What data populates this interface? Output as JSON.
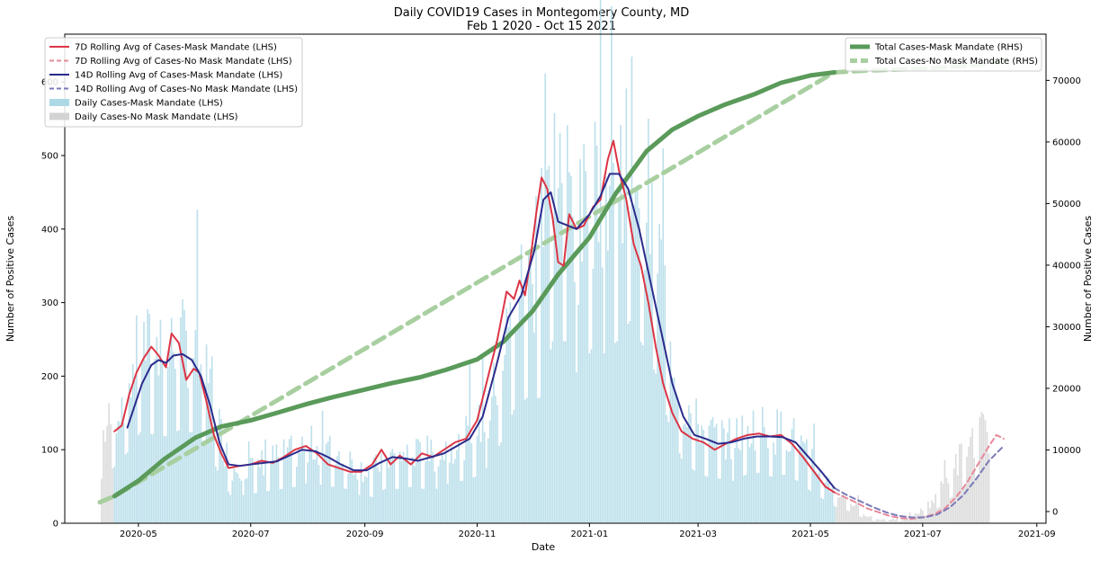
{
  "chart_data": {
    "type": "bar+line",
    "title": "Daily COVID19 Cases in Montegomery County, MD",
    "subtitle": "Feb 1 2020 - Oct 15 2021",
    "xlabel": "Date",
    "ylabel_left": "Number of Positive Cases",
    "ylabel_right": "Number of Positive Cases",
    "x_range": [
      "2020-03-22",
      "2021-09-06"
    ],
    "ylim_left": [
      0,
      665
    ],
    "ylim_right": [
      -1900,
      77500
    ],
    "x_ticks": [
      "2020-05",
      "2020-07",
      "2020-09",
      "2020-11",
      "2021-01",
      "2021-03",
      "2021-05",
      "2021-07",
      "2021-09"
    ],
    "y_ticks_left": [
      0,
      100,
      200,
      300,
      400,
      500,
      600
    ],
    "y_ticks_right": [
      0,
      10000,
      20000,
      30000,
      40000,
      50000,
      60000,
      70000
    ],
    "legend_left": [
      {
        "label": "7D Rolling Avg of Cases-Mask Mandate (LHS)",
        "kind": "line",
        "color": "#dc3545",
        "dash": false
      },
      {
        "label": "7D Rolling Avg of Cases-No Mask Mandate (LHS)",
        "kind": "line",
        "color": "#e8899a",
        "dash": true
      },
      {
        "label": "14D Rolling Avg of Cases-Mask Mandate (LHS)",
        "kind": "line",
        "color": "#2b2b8c",
        "dash": false
      },
      {
        "label": "14D Rolling Avg of Cases-No Mask Mandate (LHS)",
        "kind": "line",
        "color": "#7a7ab8",
        "dash": true
      },
      {
        "label": "Daily Cases-Mask Mandate (LHS)",
        "kind": "bar",
        "color": "#add8e6"
      },
      {
        "label": "Daily Cases-No Mask Mandate (LHS)",
        "kind": "bar",
        "color": "#d3d3d3"
      }
    ],
    "legend_right": [
      {
        "label": "Total Cases-Mask Mandate (RHS)",
        "kind": "line",
        "color": "#5a9a5a",
        "dash": false
      },
      {
        "label": "Total Cases-No Mask Mandate (RHS)",
        "kind": "line",
        "color": "#a8cfa0",
        "dash": true
      }
    ],
    "mask_mandate_period": [
      "2020-04-18",
      "2021-05-14"
    ],
    "daily_cases_weekly_approx": {
      "start": "2020-04-11",
      "values": [
        110,
        140,
        175,
        225,
        220,
        215,
        230,
        225,
        200,
        130,
        70,
        70,
        75,
        80,
        85,
        90,
        100,
        95,
        90,
        85,
        70,
        65,
        85,
        85,
        90,
        85,
        85,
        100,
        105,
        115,
        140,
        200,
        280,
        310,
        310,
        450,
        450,
        360,
        430,
        420,
        450,
        500,
        440,
        370,
        250,
        160,
        130,
        115,
        110,
        105,
        120,
        125,
        115,
        120,
        105,
        80,
        60,
        40,
        30,
        15,
        5,
        5,
        5,
        10,
        20,
        40,
        65,
        95,
        115
      ]
    },
    "series": [
      {
        "name": "7D Rolling Avg of Cases-Mask Mandate (LHS)",
        "points": [
          [
            "2020-04-18",
            125
          ],
          [
            "2020-04-22",
            133
          ],
          [
            "2020-04-26",
            175
          ],
          [
            "2020-04-30",
            205
          ],
          [
            "2020-05-04",
            225
          ],
          [
            "2020-05-08",
            240
          ],
          [
            "2020-05-12",
            228
          ],
          [
            "2020-05-16",
            212
          ],
          [
            "2020-05-19",
            258
          ],
          [
            "2020-05-23",
            245
          ],
          [
            "2020-05-27",
            195
          ],
          [
            "2020-05-31",
            210
          ],
          [
            "2020-06-03",
            205
          ],
          [
            "2020-06-07",
            165
          ],
          [
            "2020-06-11",
            120
          ],
          [
            "2020-06-15",
            95
          ],
          [
            "2020-06-19",
            75
          ],
          [
            "2020-06-25",
            78
          ],
          [
            "2020-07-01",
            80
          ],
          [
            "2020-07-07",
            85
          ],
          [
            "2020-07-13",
            82
          ],
          [
            "2020-07-19",
            90
          ],
          [
            "2020-07-25",
            100
          ],
          [
            "2020-07-31",
            105
          ],
          [
            "2020-08-06",
            95
          ],
          [
            "2020-08-12",
            80
          ],
          [
            "2020-08-18",
            75
          ],
          [
            "2020-08-24",
            70
          ],
          [
            "2020-08-30",
            70
          ],
          [
            "2020-09-05",
            80
          ],
          [
            "2020-09-10",
            100
          ],
          [
            "2020-09-15",
            80
          ],
          [
            "2020-09-20",
            92
          ],
          [
            "2020-09-26",
            80
          ],
          [
            "2020-10-02",
            95
          ],
          [
            "2020-10-08",
            90
          ],
          [
            "2020-10-14",
            100
          ],
          [
            "2020-10-20",
            110
          ],
          [
            "2020-10-26",
            115
          ],
          [
            "2020-11-01",
            140
          ],
          [
            "2020-11-07",
            200
          ],
          [
            "2020-11-12",
            250
          ],
          [
            "2020-11-17",
            315
          ],
          [
            "2020-11-21",
            305
          ],
          [
            "2020-11-24",
            330
          ],
          [
            "2020-11-27",
            310
          ],
          [
            "2020-11-30",
            360
          ],
          [
            "2020-12-03",
            420
          ],
          [
            "2020-12-06",
            470
          ],
          [
            "2020-12-09",
            455
          ],
          [
            "2020-12-12",
            415
          ],
          [
            "2020-12-15",
            355
          ],
          [
            "2020-12-18",
            350
          ],
          [
            "2020-12-21",
            420
          ],
          [
            "2020-12-25",
            400
          ],
          [
            "2020-12-29",
            405
          ],
          [
            "2021-01-03",
            430
          ],
          [
            "2021-01-07",
            440
          ],
          [
            "2021-01-11",
            495
          ],
          [
            "2021-01-14",
            520
          ],
          [
            "2021-01-17",
            480
          ],
          [
            "2021-01-21",
            440
          ],
          [
            "2021-01-25",
            380
          ],
          [
            "2021-01-29",
            350
          ],
          [
            "2021-02-02",
            300
          ],
          [
            "2021-02-06",
            240
          ],
          [
            "2021-02-10",
            190
          ],
          [
            "2021-02-15",
            150
          ],
          [
            "2021-02-20",
            125
          ],
          [
            "2021-02-26",
            115
          ],
          [
            "2021-03-04",
            110
          ],
          [
            "2021-03-10",
            100
          ],
          [
            "2021-03-16",
            108
          ],
          [
            "2021-03-22",
            115
          ],
          [
            "2021-03-28",
            120
          ],
          [
            "2021-04-03",
            122
          ],
          [
            "2021-04-09",
            118
          ],
          [
            "2021-04-15",
            120
          ],
          [
            "2021-04-21",
            108
          ],
          [
            "2021-04-27",
            90
          ],
          [
            "2021-05-03",
            70
          ],
          [
            "2021-05-09",
            50
          ],
          [
            "2021-05-14",
            42
          ]
        ]
      },
      {
        "name": "7D Rolling Avg of Cases-No Mask Mandate (LHS)",
        "points": [
          [
            "2021-05-14",
            42
          ],
          [
            "2021-05-20",
            35
          ],
          [
            "2021-05-26",
            28
          ],
          [
            "2021-06-01",
            20
          ],
          [
            "2021-06-07",
            15
          ],
          [
            "2021-06-13",
            10
          ],
          [
            "2021-06-19",
            7
          ],
          [
            "2021-06-25",
            6
          ],
          [
            "2021-07-01",
            8
          ],
          [
            "2021-07-07",
            12
          ],
          [
            "2021-07-13",
            20
          ],
          [
            "2021-07-19",
            35
          ],
          [
            "2021-07-25",
            55
          ],
          [
            "2021-07-31",
            80
          ],
          [
            "2021-08-06",
            105
          ],
          [
            "2021-08-10",
            120
          ],
          [
            "2021-08-14",
            115
          ]
        ]
      },
      {
        "name": "14D Rolling Avg of Cases-Mask Mandate (LHS)",
        "points": [
          [
            "2020-04-25",
            130
          ],
          [
            "2020-04-29",
            160
          ],
          [
            "2020-05-03",
            190
          ],
          [
            "2020-05-08",
            215
          ],
          [
            "2020-05-12",
            222
          ],
          [
            "2020-05-16",
            218
          ],
          [
            "2020-05-20",
            228
          ],
          [
            "2020-05-25",
            230
          ],
          [
            "2020-05-30",
            222
          ],
          [
            "2020-06-04",
            200
          ],
          [
            "2020-06-09",
            160
          ],
          [
            "2020-06-14",
            110
          ],
          [
            "2020-06-19",
            80
          ],
          [
            "2020-06-25",
            78
          ],
          [
            "2020-07-01",
            80
          ],
          [
            "2020-07-08",
            82
          ],
          [
            "2020-07-15",
            84
          ],
          [
            "2020-07-22",
            92
          ],
          [
            "2020-07-29",
            100
          ],
          [
            "2020-08-05",
            98
          ],
          [
            "2020-08-12",
            90
          ],
          [
            "2020-08-19",
            80
          ],
          [
            "2020-08-26",
            72
          ],
          [
            "2020-09-02",
            72
          ],
          [
            "2020-09-09",
            82
          ],
          [
            "2020-09-16",
            90
          ],
          [
            "2020-09-23",
            88
          ],
          [
            "2020-09-30",
            85
          ],
          [
            "2020-10-07",
            90
          ],
          [
            "2020-10-14",
            95
          ],
          [
            "2020-10-21",
            105
          ],
          [
            "2020-10-28",
            115
          ],
          [
            "2020-11-04",
            145
          ],
          [
            "2020-11-11",
            210
          ],
          [
            "2020-11-18",
            280
          ],
          [
            "2020-11-25",
            310
          ],
          [
            "2020-12-02",
            370
          ],
          [
            "2020-12-07",
            440
          ],
          [
            "2020-12-11",
            450
          ],
          [
            "2020-12-15",
            410
          ],
          [
            "2020-12-20",
            405
          ],
          [
            "2020-12-25",
            400
          ],
          [
            "2021-01-01",
            420
          ],
          [
            "2021-01-07",
            445
          ],
          [
            "2021-01-12",
            475
          ],
          [
            "2021-01-17",
            475
          ],
          [
            "2021-01-22",
            455
          ],
          [
            "2021-01-28",
            400
          ],
          [
            "2021-02-03",
            330
          ],
          [
            "2021-02-09",
            260
          ],
          [
            "2021-02-15",
            190
          ],
          [
            "2021-02-21",
            145
          ],
          [
            "2021-02-27",
            120
          ],
          [
            "2021-03-05",
            115
          ],
          [
            "2021-03-12",
            108
          ],
          [
            "2021-03-19",
            110
          ],
          [
            "2021-03-26",
            115
          ],
          [
            "2021-04-02",
            118
          ],
          [
            "2021-04-09",
            118
          ],
          [
            "2021-04-16",
            117
          ],
          [
            "2021-04-23",
            110
          ],
          [
            "2021-04-30",
            90
          ],
          [
            "2021-05-07",
            70
          ],
          [
            "2021-05-14",
            48
          ]
        ]
      },
      {
        "name": "14D Rolling Avg of Cases-No Mask Mandate (LHS)",
        "points": [
          [
            "2021-05-14",
            48
          ],
          [
            "2021-05-21",
            38
          ],
          [
            "2021-05-28",
            30
          ],
          [
            "2021-06-04",
            22
          ],
          [
            "2021-06-11",
            15
          ],
          [
            "2021-06-18",
            10
          ],
          [
            "2021-06-25",
            8
          ],
          [
            "2021-07-02",
            8
          ],
          [
            "2021-07-09",
            12
          ],
          [
            "2021-07-16",
            22
          ],
          [
            "2021-07-23",
            38
          ],
          [
            "2021-07-30",
            60
          ],
          [
            "2021-08-06",
            85
          ],
          [
            "2021-08-14",
            105
          ]
        ]
      },
      {
        "name": "Total Cases-Mask Mandate (RHS)",
        "points": [
          [
            "2020-04-18",
            2500
          ],
          [
            "2020-05-01",
            5000
          ],
          [
            "2020-05-15",
            8500
          ],
          [
            "2020-06-01",
            12000
          ],
          [
            "2020-06-15",
            13800
          ],
          [
            "2020-07-01",
            14800
          ],
          [
            "2020-07-15",
            16000
          ],
          [
            "2020-08-01",
            17500
          ],
          [
            "2020-08-15",
            18600
          ],
          [
            "2020-09-01",
            19800
          ],
          [
            "2020-09-15",
            20800
          ],
          [
            "2020-10-01",
            21800
          ],
          [
            "2020-10-15",
            23000
          ],
          [
            "2020-11-01",
            24700
          ],
          [
            "2020-11-15",
            27500
          ],
          [
            "2020-12-01",
            32500
          ],
          [
            "2020-12-15",
            38500
          ],
          [
            "2021-01-01",
            44500
          ],
          [
            "2021-01-15",
            51500
          ],
          [
            "2021-02-01",
            58500
          ],
          [
            "2021-02-15",
            62000
          ],
          [
            "2021-03-01",
            64200
          ],
          [
            "2021-03-15",
            66000
          ],
          [
            "2021-04-01",
            67800
          ],
          [
            "2021-04-15",
            69600
          ],
          [
            "2021-05-01",
            70800
          ],
          [
            "2021-05-14",
            71300
          ]
        ]
      },
      {
        "name": "Total Cases-No Mask Mandate (RHS)",
        "points": [
          [
            "2020-04-10",
            1500
          ],
          [
            "2020-04-18",
            2500
          ],
          [
            "2021-05-14",
            71300
          ],
          [
            "2021-06-01",
            71600
          ],
          [
            "2021-07-01",
            71900
          ],
          [
            "2021-08-01",
            72500
          ],
          [
            "2021-08-15",
            73300
          ]
        ]
      }
    ]
  }
}
